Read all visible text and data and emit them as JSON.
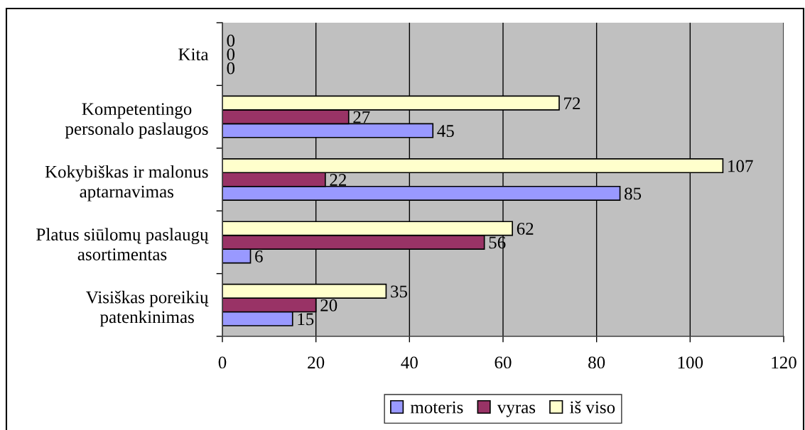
{
  "chart_data": {
    "type": "bar",
    "orientation": "horizontal",
    "categories": [
      "Kita",
      "Kompetentingo\npersonalo paslaugos",
      "Kokybiškas ir malonus\naptarnavimas",
      "Platus siūlomų paslaugų\nasortimentas",
      "Visiškas poreikių\npatenkinimas"
    ],
    "series": [
      {
        "name": "moteris",
        "color": "#9999ff",
        "values": [
          0,
          45,
          85,
          6,
          15
        ]
      },
      {
        "name": "vyras",
        "color": "#993366",
        "values": [
          0,
          27,
          22,
          56,
          20
        ]
      },
      {
        "name": "iš viso",
        "color": "#ffffcc",
        "values": [
          0,
          72,
          107,
          62,
          35
        ]
      }
    ],
    "xlim": [
      0,
      120
    ],
    "xticks": [
      0,
      20,
      40,
      60,
      80,
      100,
      120
    ],
    "grid": "x",
    "legend": "bottom",
    "data_labels": true
  }
}
